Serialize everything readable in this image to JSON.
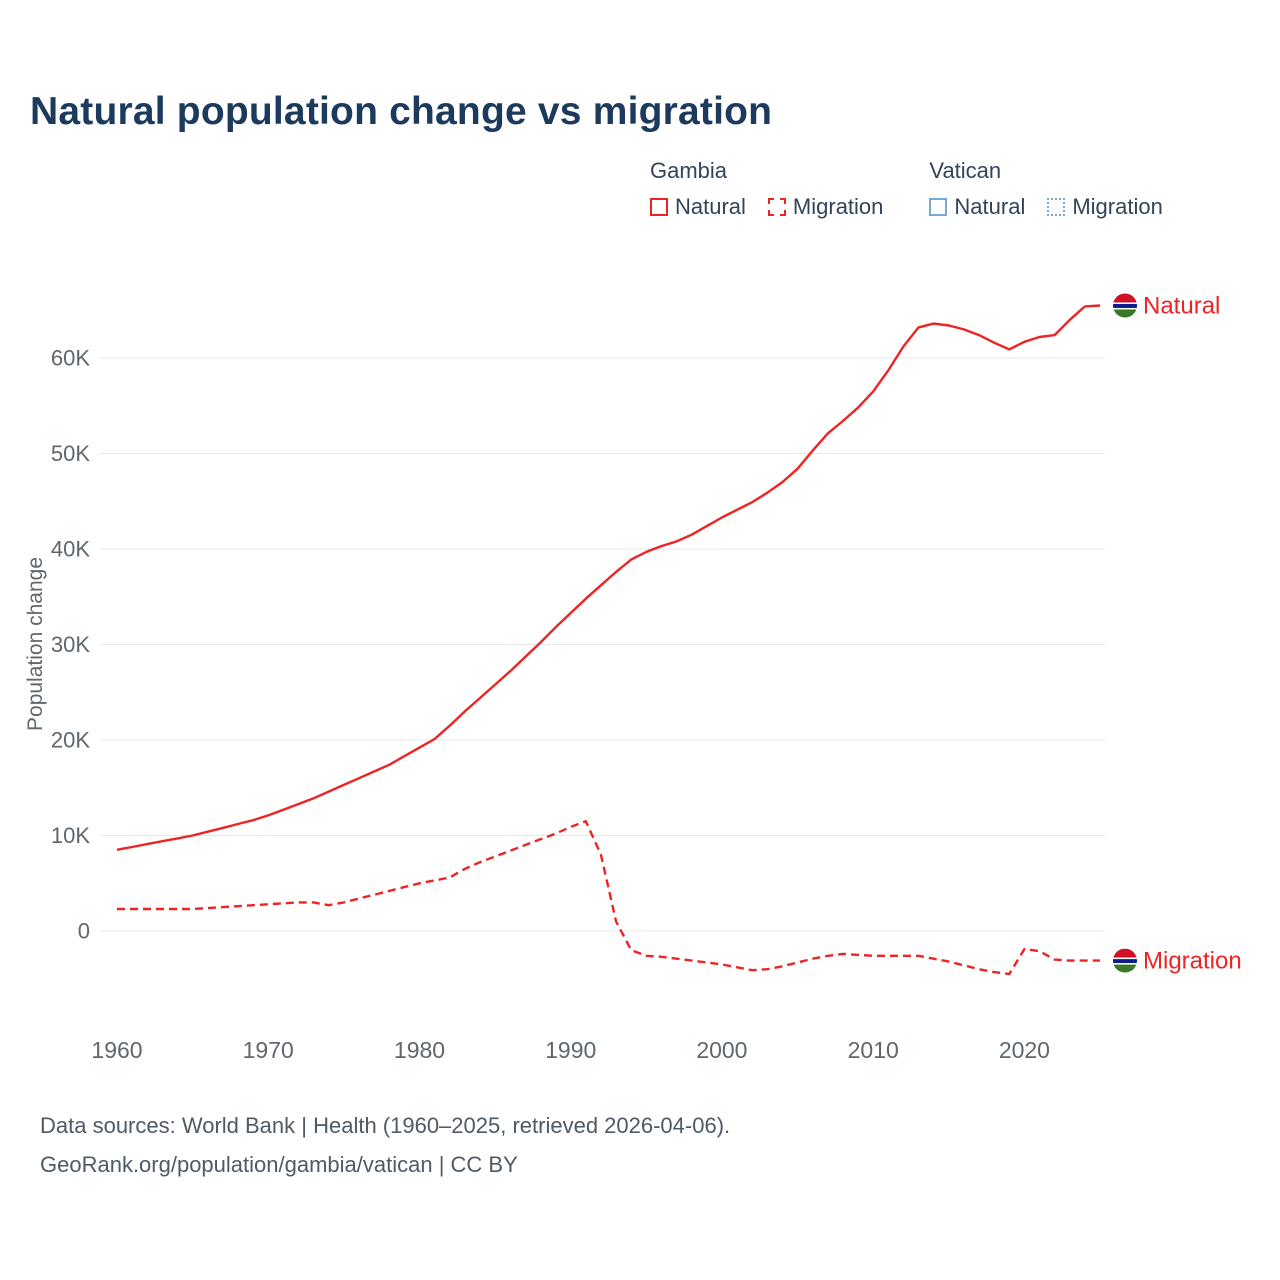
{
  "title": "Natural population change vs migration",
  "legend": {
    "groups": [
      {
        "label": "Gambia",
        "items": [
          {
            "label": "Natural",
            "swatch": "red-solid"
          },
          {
            "label": "Migration",
            "swatch": "red-dashed"
          }
        ]
      },
      {
        "label": "Vatican",
        "items": [
          {
            "label": "Natural",
            "swatch": "blue-solid"
          },
          {
            "label": "Migration",
            "swatch": "blue-dotted"
          }
        ]
      }
    ]
  },
  "colors": {
    "gambia_series": "#ee2424",
    "vatican_series": "#74a9d8",
    "gridline": "#e8e8e8",
    "axis_text": "#5d6770",
    "title_text": "#1c3a5e",
    "flag_red": "#CE1126",
    "flag_blue": "#0C1C8C",
    "flag_green": "#3A7728"
  },
  "chart_data": {
    "type": "line",
    "title": "Natural population change vs migration",
    "xlabel": "",
    "ylabel": "Population change",
    "grid": true,
    "legend_position": "top-right",
    "ylim": [
      -8000,
      67000
    ],
    "y_ticks": [
      0,
      10000,
      20000,
      30000,
      40000,
      50000,
      60000
    ],
    "y_tick_labels": [
      "0",
      "10K",
      "20K",
      "30K",
      "40K",
      "50K",
      "60K"
    ],
    "x_ticks": [
      1960,
      1970,
      1980,
      1990,
      2000,
      2010,
      2020
    ],
    "x": [
      1960,
      1961,
      1962,
      1963,
      1964,
      1965,
      1966,
      1967,
      1968,
      1969,
      1970,
      1971,
      1972,
      1973,
      1974,
      1975,
      1976,
      1977,
      1978,
      1979,
      1980,
      1981,
      1982,
      1983,
      1984,
      1985,
      1986,
      1987,
      1988,
      1989,
      1990,
      1991,
      1992,
      1993,
      1994,
      1995,
      1996,
      1997,
      1998,
      1999,
      2000,
      2001,
      2002,
      2003,
      2004,
      2005,
      2006,
      2007,
      2008,
      2009,
      2010,
      2011,
      2012,
      2013,
      2014,
      2015,
      2016,
      2017,
      2018,
      2019,
      2020,
      2021,
      2022,
      2023,
      2024,
      2025
    ],
    "series": [
      {
        "name": "Gambia Natural",
        "color": "#ee2424",
        "dash": "solid",
        "values": [
          8500,
          8800,
          9100,
          9400,
          9700,
          10000,
          10400,
          10800,
          11200,
          11600,
          12100,
          12700,
          13300,
          13900,
          14600,
          15300,
          16000,
          16700,
          17400,
          18300,
          19200,
          20100,
          21500,
          23000,
          24400,
          25800,
          27200,
          28700,
          30200,
          31800,
          33300,
          34800,
          36200,
          37600,
          38900,
          39700,
          40300,
          40800,
          41500,
          42400,
          43300,
          44100,
          44900,
          45900,
          47000,
          48400,
          50300,
          52100,
          53400,
          54800,
          56500,
          58700,
          61200,
          63200,
          63600,
          63400,
          63000,
          62400,
          61600,
          60900,
          61700,
          62200,
          62400,
          64000,
          65400,
          65500
        ]
      },
      {
        "name": "Gambia Migration",
        "color": "#ee2424",
        "dash": "dashed",
        "values": [
          2300,
          2300,
          2300,
          2300,
          2300,
          2300,
          2400,
          2500,
          2600,
          2700,
          2800,
          2900,
          3000,
          3000,
          2700,
          3000,
          3400,
          3800,
          4200,
          4600,
          5000,
          5300,
          5600,
          6500,
          7200,
          7800,
          8400,
          9000,
          9600,
          10200,
          10900,
          11500,
          8000,
          1000,
          -2000,
          -2600,
          -2700,
          -2900,
          -3100,
          -3300,
          -3500,
          -3800,
          -4100,
          -4000,
          -3700,
          -3300,
          -2900,
          -2600,
          -2400,
          -2500,
          -2600,
          -2600,
          -2600,
          -2600,
          -2900,
          -3200,
          -3600,
          -4000,
          -4300,
          -4500,
          -1900,
          -2100,
          -3000,
          -3100,
          -3100,
          -3100
        ]
      },
      {
        "name": "Vatican Natural",
        "color": "#74a9d8",
        "dash": "solid",
        "values": []
      },
      {
        "name": "Vatican Migration",
        "color": "#74a9d8",
        "dash": "dotted",
        "values": []
      }
    ],
    "end_labels": [
      {
        "text": "Natural",
        "series": 0,
        "flag": "gambia"
      },
      {
        "text": "Migration",
        "series": 1,
        "flag": "gambia"
      }
    ],
    "flag_colors": {
      "gambia": [
        "#CE1126",
        "#FFFFFF",
        "#0C1C8C",
        "#FFFFFF",
        "#3A7728"
      ]
    }
  },
  "footer": {
    "line1": "Data sources: World Bank | Health (1960–2025, retrieved 2026-04-06).",
    "line2": "GeoRank.org/population/gambia/vatican | CC BY"
  }
}
